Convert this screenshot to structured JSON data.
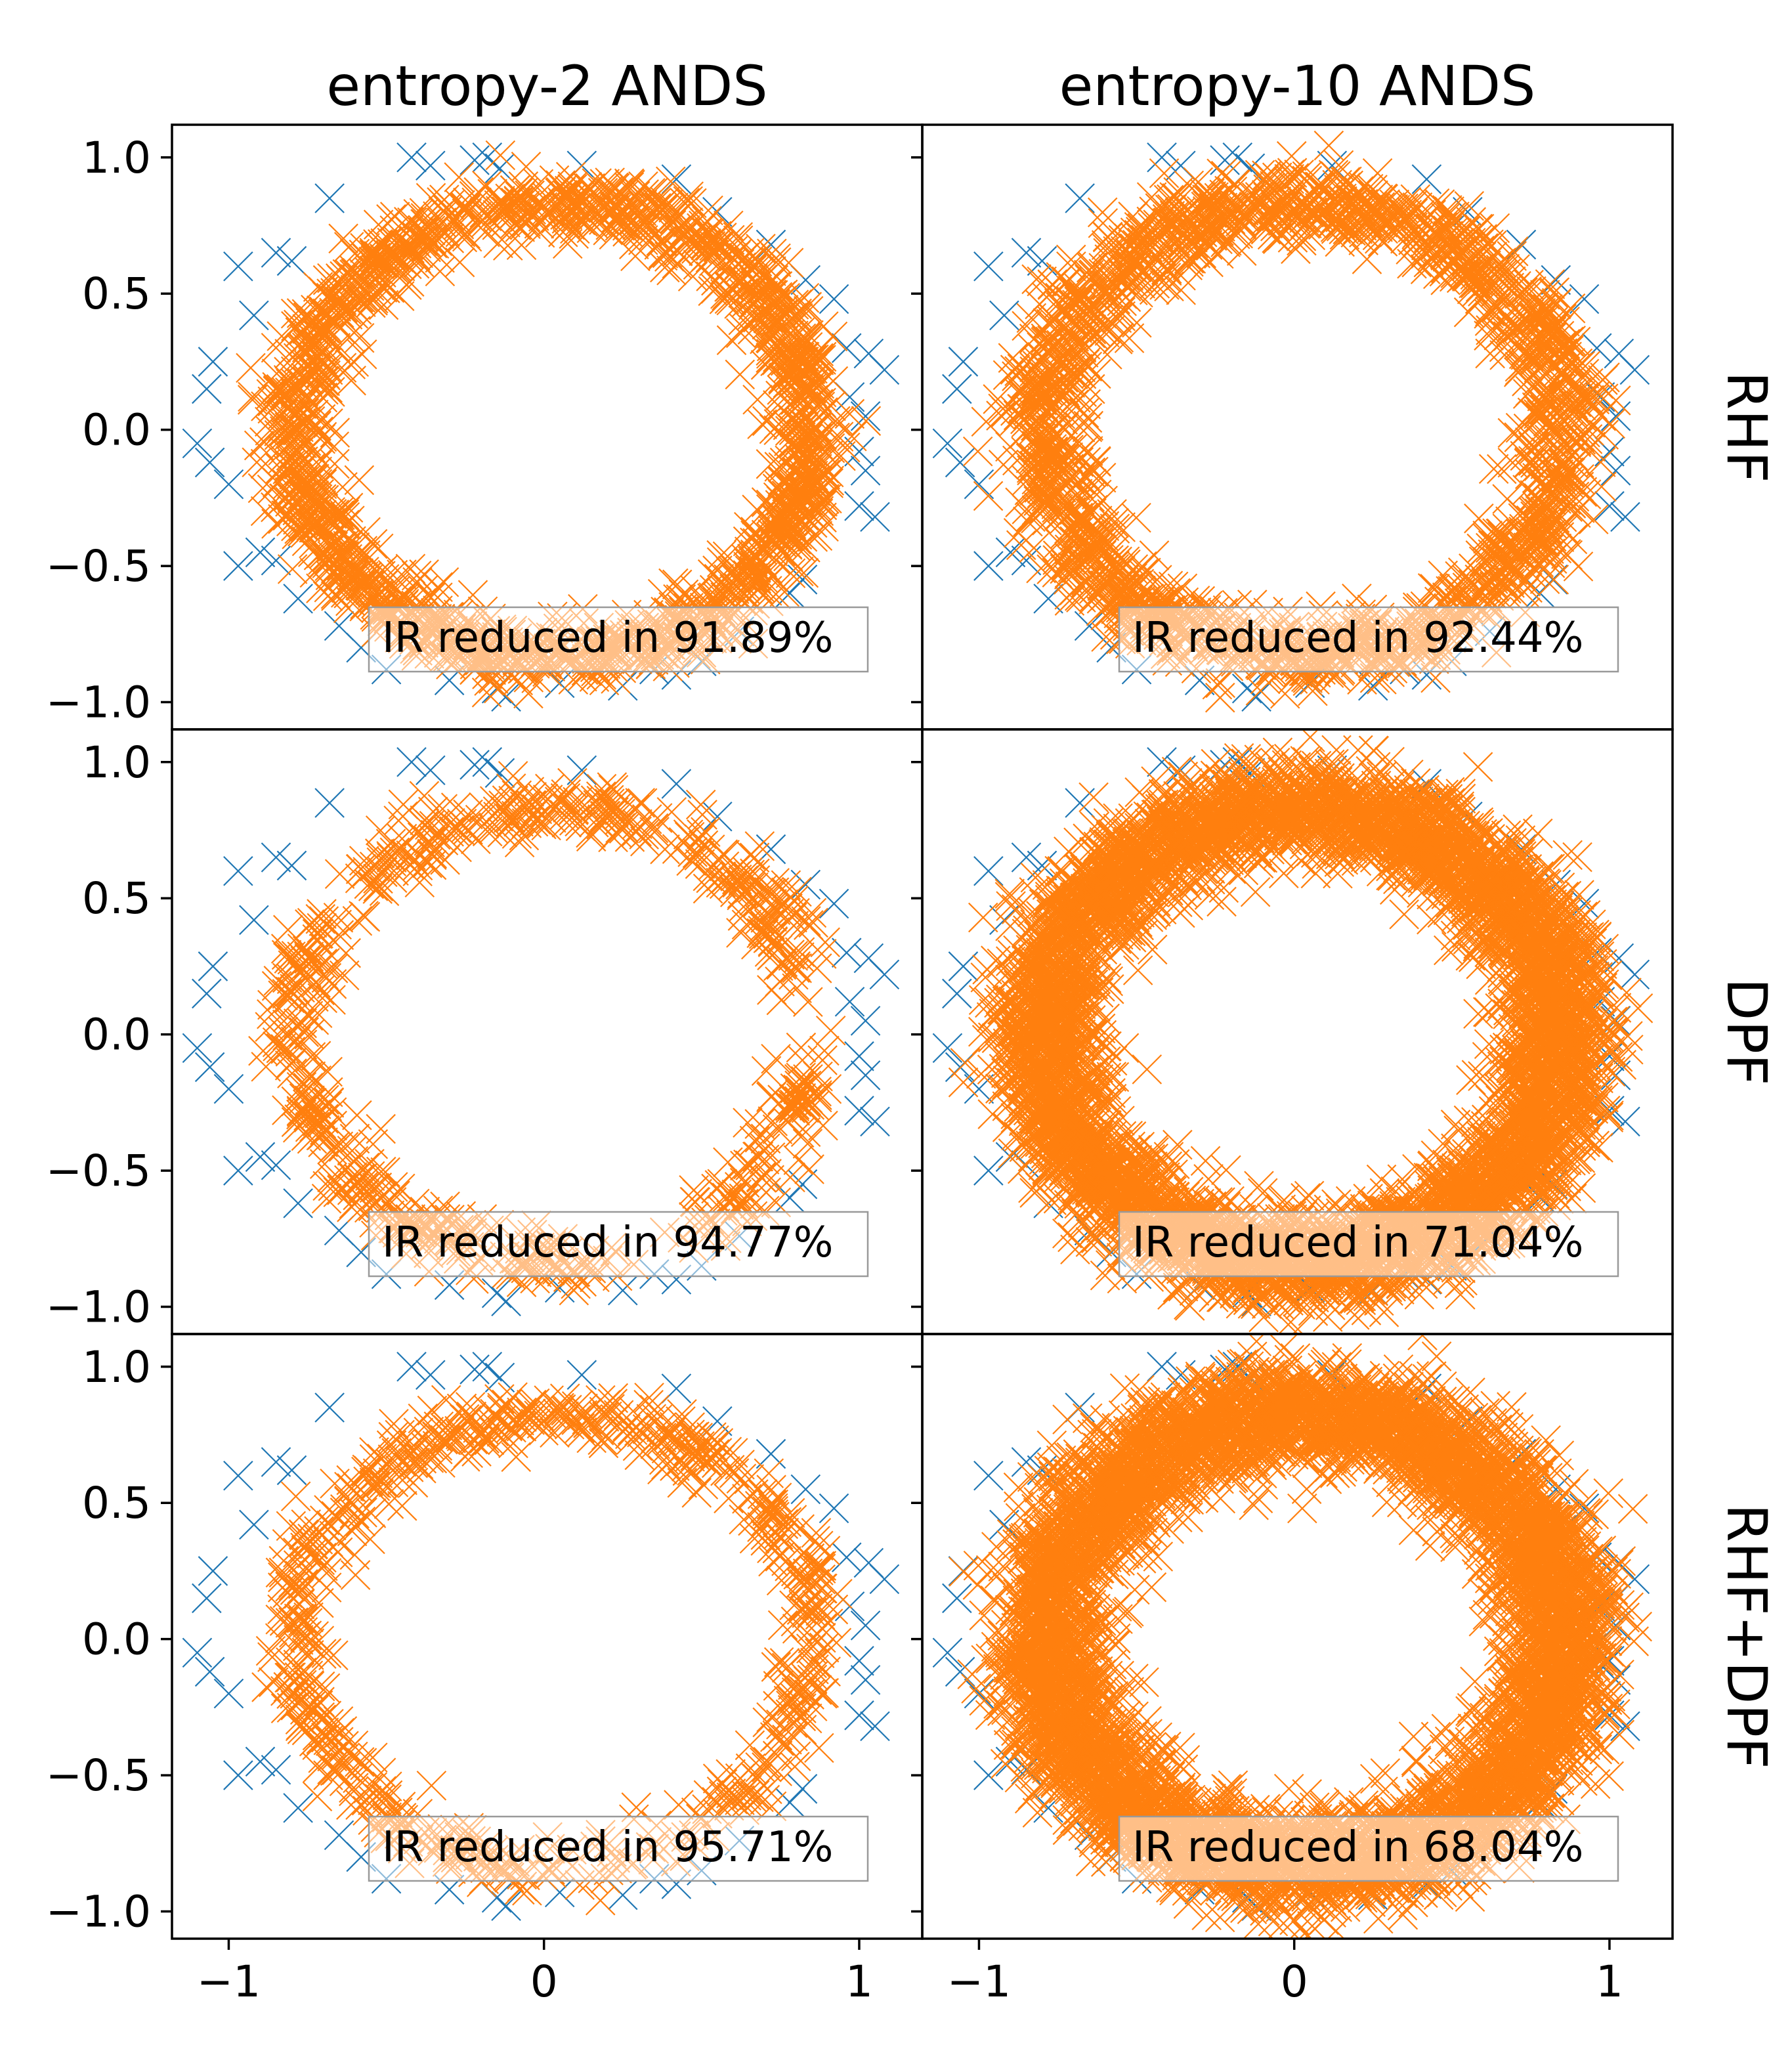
{
  "chart_data": {
    "type": "scatter",
    "marker": "x",
    "columns": [
      {
        "title": "entropy-2 ANDS",
        "pattern": "ring-thin"
      },
      {
        "title": "entropy-10 ANDS",
        "pattern": "ring-thick"
      }
    ],
    "rows": [
      "RHF",
      "DPF",
      "RHF+DPF"
    ],
    "xlim": [
      -1.18,
      1.2
    ],
    "ylim": [
      -1.1,
      1.12
    ],
    "xticks": [
      {
        "v": -1,
        "label": "−1"
      },
      {
        "v": 0,
        "label": "0"
      },
      {
        "v": 1,
        "label": "1"
      }
    ],
    "yticks": [
      {
        "v": 1.0,
        "label": "1.0"
      },
      {
        "v": 0.5,
        "label": "0.5"
      },
      {
        "v": 0.0,
        "label": "0.0"
      },
      {
        "v": -0.5,
        "label": "−0.5"
      },
      {
        "v": -1.0,
        "label": "−1.0"
      }
    ],
    "series": [
      {
        "color": "#1f77b4"
      },
      {
        "color": "#ff7f0e"
      }
    ],
    "panels": [
      {
        "row": "RHF",
        "column": "entropy-2 ANDS",
        "annotation": "IR reduced in 91.89%",
        "fill": "rhf2"
      },
      {
        "row": "RHF",
        "column": "entropy-10 ANDS",
        "annotation": "IR reduced in 92.44%",
        "fill": "rhf10"
      },
      {
        "row": "DPF",
        "column": "entropy-2 ANDS",
        "annotation": "IR reduced in 94.77%",
        "fill": "dpf2"
      },
      {
        "row": "DPF",
        "column": "entropy-10 ANDS",
        "annotation": "IR reduced in 71.04%",
        "fill": "dpf10"
      },
      {
        "row": "RHF+DPF",
        "column": "entropy-2 ANDS",
        "annotation": "IR reduced in 95.71%",
        "fill": "both2"
      },
      {
        "row": "RHF+DPF",
        "column": "entropy-10 ANDS",
        "annotation": "IR reduced in 68.04%",
        "fill": "both10"
      }
    ],
    "original_points": [
      [
        -0.42,
        1.0
      ],
      [
        -0.36,
        0.97
      ],
      [
        -0.22,
        0.99
      ],
      [
        -0.18,
        1.0
      ],
      [
        -0.14,
        0.96
      ],
      [
        0.12,
        0.97
      ],
      [
        0.42,
        0.92
      ],
      [
        -0.68,
        0.85
      ],
      [
        0.55,
        0.8
      ],
      [
        0.72,
        0.68
      ],
      [
        -0.85,
        0.65
      ],
      [
        -0.8,
        0.62
      ],
      [
        -0.97,
        0.6
      ],
      [
        0.83,
        0.55
      ],
      [
        0.92,
        0.48
      ],
      [
        -0.92,
        0.42
      ],
      [
        0.96,
        0.3
      ],
      [
        1.03,
        0.28
      ],
      [
        1.08,
        0.22
      ],
      [
        -1.05,
        0.25
      ],
      [
        -1.07,
        0.15
      ],
      [
        0.97,
        0.12
      ],
      [
        1.02,
        0.05
      ],
      [
        -1.1,
        -0.05
      ],
      [
        -1.06,
        -0.12
      ],
      [
        1.0,
        -0.08
      ],
      [
        1.02,
        -0.15
      ],
      [
        1.0,
        -0.28
      ],
      [
        1.05,
        -0.32
      ],
      [
        -1.0,
        -0.2
      ],
      [
        -0.97,
        -0.5
      ],
      [
        -0.9,
        -0.45
      ],
      [
        -0.85,
        -0.48
      ],
      [
        0.82,
        -0.55
      ],
      [
        0.78,
        -0.6
      ],
      [
        -0.65,
        -0.72
      ],
      [
        -0.58,
        -0.8
      ],
      [
        0.5,
        -0.85
      ],
      [
        0.42,
        -0.9
      ],
      [
        -0.5,
        -0.88
      ],
      [
        -0.3,
        -0.92
      ],
      [
        -0.15,
        -0.95
      ],
      [
        -0.12,
        -0.98
      ],
      [
        0.05,
        -0.93
      ],
      [
        0.25,
        -0.94
      ],
      [
        0.35,
        -0.88
      ],
      [
        0.62,
        -0.74
      ],
      [
        -0.78,
        -0.62
      ]
    ]
  }
}
